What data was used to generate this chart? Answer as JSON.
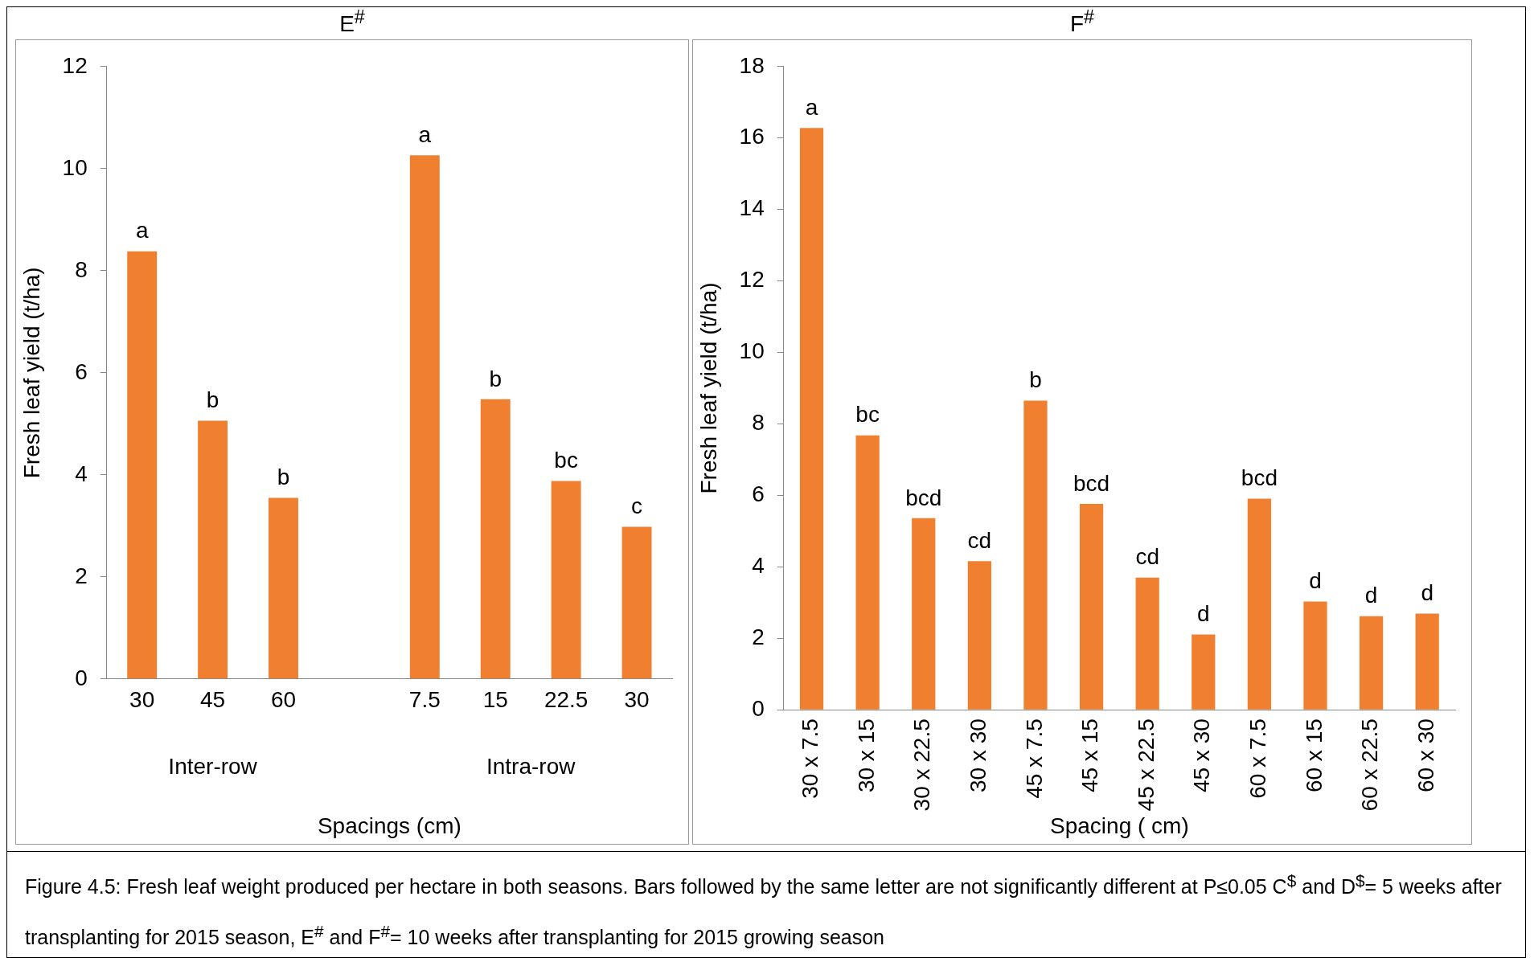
{
  "chart_data": [
    {
      "type": "bar",
      "title": "E$^{#}$",
      "xlabel": "Spacings (cm)",
      "ylabel": "Fresh leaf yield (t/ha)",
      "categories": [
        "30",
        "45",
        "60",
        null,
        "7.5",
        "15",
        "22.5",
        "30"
      ],
      "values": [
        8.38,
        5.06,
        3.55,
        null,
        10.26,
        5.48,
        3.88,
        2.98
      ],
      "value_labels": [
        "a",
        "b",
        "b",
        null,
        "a",
        "b",
        "bc",
        "c"
      ],
      "color": "#f07f30",
      "ylim": [
        0,
        12
      ],
      "yticks": [
        0,
        2,
        4,
        6,
        8,
        10,
        12
      ],
      "grid": false,
      "legend": false,
      "annotations": [
        "Inter-row",
        "Intra-row"
      ]
    },
    {
      "type": "bar",
      "title": "F$^{#}$",
      "xlabel": "Spacing ( cm)",
      "ylabel": "Fresh leaf yield (t/ha)",
      "categories": [
        "30 x 7.5",
        "30 x 15",
        "30 x 22.5",
        "30 x 30",
        "45 x 7.5",
        "45 x 15",
        "45 x 22.5",
        "45 x 30",
        "60 x 7.5",
        "60 x 15",
        "60 x 22.5",
        "60 x 30"
      ],
      "values": [
        16.28,
        7.68,
        5.36,
        4.16,
        8.65,
        5.76,
        3.7,
        2.11,
        5.91,
        3.03,
        2.62,
        2.69
      ],
      "value_labels": [
        "a",
        "bc",
        "bcd",
        "cd",
        "b",
        "bcd",
        "cd",
        "d",
        "bcd",
        "d",
        "d",
        "d"
      ],
      "color": "#f07f30",
      "ylim": [
        0,
        18
      ],
      "yticks": [
        0,
        2,
        4,
        6,
        8,
        10,
        12,
        14,
        16,
        18
      ],
      "grid": false,
      "legend": false,
      "annotations": [
        "Figure 4.5: Fresh leaf weight produced per hectare in both seasons. Bars followed by the same letter are not significantly different at P≤0.05 C$^{$}$ and D$^{$}$= 5 weeks after transplanting for 2015 season, E$^{#}$ and F$^{#}$= 10 weeks after transplanting for 2015 growing season"
      ]
    }
  ]
}
